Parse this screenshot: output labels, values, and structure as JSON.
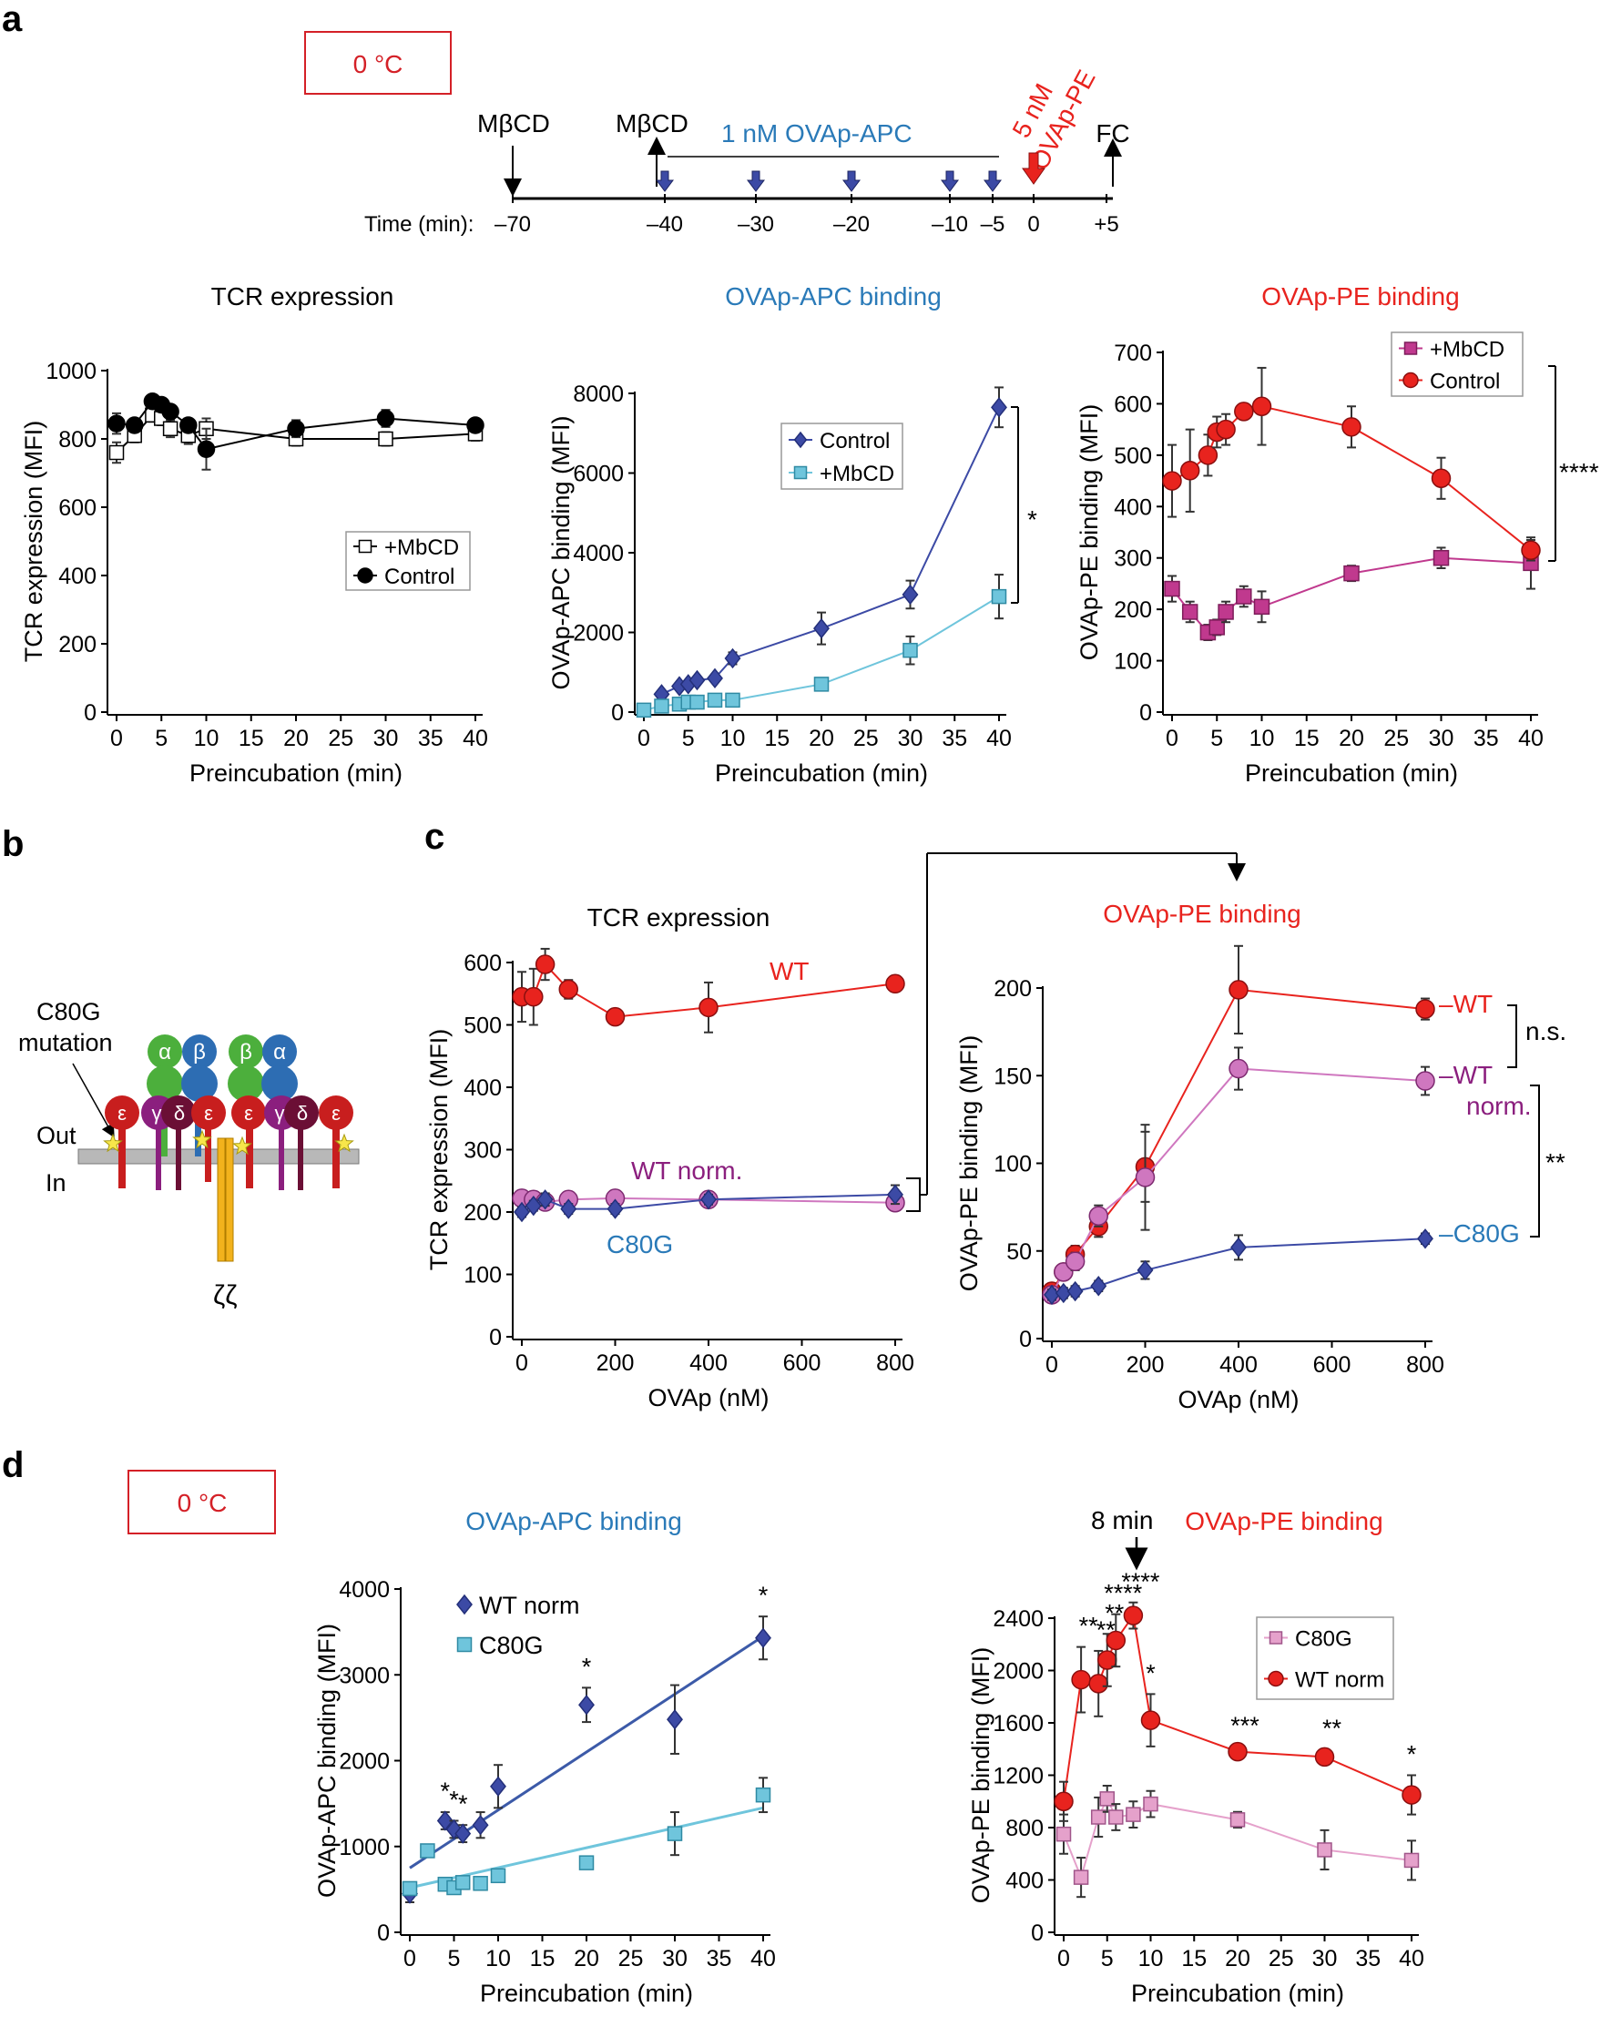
{
  "panels": {
    "a": "a",
    "b": "b",
    "c": "c",
    "d": "d"
  },
  "colors": {
    "red": "#e8231e",
    "redText": "#d42027",
    "blueText": "#2a7ab8",
    "navy": "#3c4aa5",
    "lightblue": "#6fc5dc",
    "magenta": "#c0398e",
    "pink": "#e5a1cb",
    "purple": "#8b1f7e",
    "orchid": "#cf77bf"
  },
  "timeline": {
    "temperature": "0 °C",
    "mbcd1": "MβCD",
    "mbcd2": "MβCD",
    "apc_label": "1 nM OVAp-APC",
    "pe_label_line1": "5 nM",
    "pe_label_line2": "OVAp-PE",
    "fc": "FC",
    "time_label": "Time (min):",
    "ticks": [
      "–70",
      "–40",
      "–30",
      "–20",
      "–10",
      "–5",
      "0",
      "+5"
    ]
  },
  "schematic": {
    "mutation_label_line1": "C80G",
    "mutation_label_line2": "mutation",
    "out_label": "Out",
    "in_label": "In",
    "zeta_label": "ζζ",
    "alpha": "α",
    "beta": "β",
    "epsilon": "ε",
    "gamma": "γ",
    "delta": "δ"
  },
  "annotations": {
    "a_apc_sig": "*",
    "a_pe_sig": "****",
    "c_ns": "n.s.",
    "c_sig": "**",
    "c_wt": "WT",
    "c_wt_norm": "WT norm.",
    "c_c80g": "C80G",
    "c_wt_right": "–WT",
    "c_wt_norm_right_1": "–WT",
    "c_wt_norm_right_2": "norm.",
    "c_c80g_right": "–C80G",
    "d_temperature": "0 °C",
    "d_time_marker": "8 min"
  },
  "chart_data": [
    {
      "id": "a1",
      "type": "line",
      "title": "TCR expression",
      "xlabel": "Preincubation (min)",
      "ylabel": "TCR expression (MFI)",
      "xlim": [
        0,
        40
      ],
      "ylim": [
        0,
        1000
      ],
      "xticks": [
        0,
        5,
        10,
        15,
        20,
        25,
        30,
        35,
        40
      ],
      "yticks": [
        0,
        200,
        400,
        600,
        800,
        1000
      ],
      "legend": [
        "+MbCD",
        "Control"
      ],
      "series": [
        {
          "name": "+MbCD",
          "x": [
            0,
            2,
            4,
            5,
            6,
            8,
            10,
            20,
            30,
            40
          ],
          "values": [
            760,
            810,
            870,
            860,
            830,
            810,
            830,
            800,
            800,
            815
          ],
          "err": [
            30,
            20,
            20,
            20,
            25,
            25,
            30,
            20,
            20,
            20
          ]
        },
        {
          "name": "Control",
          "x": [
            0,
            2,
            4,
            5,
            6,
            8,
            10,
            20,
            30,
            40
          ],
          "values": [
            845,
            840,
            910,
            900,
            880,
            840,
            770,
            830,
            860,
            840
          ],
          "err": [
            30,
            20,
            15,
            15,
            20,
            20,
            60,
            25,
            25,
            20
          ]
        }
      ]
    },
    {
      "id": "a2",
      "type": "line",
      "title": "OVAp-APC binding",
      "xlabel": "Preincubation (min)",
      "ylabel": "OVAp-APC binding (MFI)",
      "xlim": [
        0,
        40
      ],
      "ylim": [
        0,
        8000
      ],
      "xticks": [
        0,
        5,
        10,
        15,
        20,
        25,
        30,
        35,
        40
      ],
      "yticks": [
        0,
        2000,
        4000,
        6000,
        8000
      ],
      "legend": [
        "Control",
        "+MbCD"
      ],
      "series": [
        {
          "name": "Control",
          "x": [
            2,
            4,
            5,
            6,
            8,
            10,
            20,
            30,
            40
          ],
          "values": [
            450,
            650,
            700,
            800,
            850,
            1350,
            2100,
            2950,
            7650
          ],
          "err": [
            80,
            80,
            80,
            80,
            80,
            150,
            400,
            350,
            500
          ]
        },
        {
          "name": "+MbCD",
          "x": [
            0,
            2,
            4,
            5,
            6,
            8,
            10,
            20,
            30,
            40
          ],
          "values": [
            50,
            150,
            200,
            250,
            250,
            300,
            300,
            700,
            1550,
            2900
          ],
          "err": [
            30,
            30,
            30,
            30,
            30,
            40,
            40,
            80,
            350,
            550
          ]
        }
      ]
    },
    {
      "id": "a3",
      "type": "line",
      "title": "OVAp-PE binding",
      "xlabel": "Preincubation (min)",
      "ylabel": "OVAp-PE binding (MFI)",
      "xlim": [
        0,
        40
      ],
      "ylim": [
        0,
        700
      ],
      "xticks": [
        0,
        5,
        10,
        15,
        20,
        25,
        30,
        35,
        40
      ],
      "yticks": [
        0,
        100,
        200,
        300,
        400,
        500,
        600,
        700
      ],
      "legend": [
        "+MbCD",
        "Control"
      ],
      "series": [
        {
          "name": "+MbCD",
          "x": [
            0,
            2,
            4,
            5,
            6,
            8,
            10,
            20,
            30,
            40
          ],
          "values": [
            240,
            195,
            155,
            165,
            195,
            225,
            205,
            270,
            300,
            290
          ],
          "err": [
            25,
            20,
            15,
            15,
            20,
            20,
            30,
            15,
            20,
            50
          ]
        },
        {
          "name": "Control",
          "x": [
            0,
            2,
            4,
            5,
            6,
            8,
            10,
            20,
            30,
            40
          ],
          "values": [
            450,
            470,
            500,
            545,
            550,
            585,
            595,
            555,
            455,
            315
          ],
          "err": [
            70,
            80,
            40,
            30,
            30,
            10,
            75,
            40,
            40,
            20
          ]
        }
      ]
    },
    {
      "id": "c1",
      "type": "line",
      "title": "TCR expression",
      "xlabel": "OVAp (nM)",
      "ylabel": "TCR expression (MFI)",
      "xlim": [
        0,
        800
      ],
      "ylim": [
        0,
        600
      ],
      "xticks": [
        0,
        200,
        400,
        600,
        800
      ],
      "yticks": [
        0,
        100,
        200,
        300,
        400,
        500,
        600
      ],
      "series": [
        {
          "name": "WT",
          "x": [
            0,
            25,
            50,
            100,
            200,
            400,
            800
          ],
          "values": [
            545,
            545,
            597,
            557,
            513,
            528,
            566
          ],
          "err": [
            40,
            45,
            25,
            15,
            8,
            40,
            8
          ]
        },
        {
          "name": "WT norm.",
          "x": [
            0,
            25,
            50,
            100,
            200,
            400,
            800
          ],
          "values": [
            222,
            220,
            216,
            220,
            222,
            220,
            215
          ],
          "err": [
            8,
            8,
            8,
            8,
            8,
            8,
            8
          ]
        },
        {
          "name": "C80G",
          "x": [
            0,
            25,
            50,
            100,
            200,
            400,
            800
          ],
          "values": [
            200,
            210,
            220,
            205,
            205,
            220,
            228
          ],
          "err": [
            8,
            8,
            10,
            8,
            8,
            8,
            15
          ]
        }
      ]
    },
    {
      "id": "c2",
      "type": "line",
      "title": "OVAp-PE binding",
      "xlabel": "OVAp (nM)",
      "ylabel": "OVAp-PE binding (MFI)",
      "xlim": [
        0,
        800
      ],
      "ylim": [
        0,
        200
      ],
      "xticks": [
        0,
        200,
        400,
        600,
        800
      ],
      "yticks": [
        0,
        50,
        100,
        150,
        200
      ],
      "series": [
        {
          "name": "WT",
          "x": [
            0,
            25,
            50,
            100,
            200,
            400,
            800
          ],
          "values": [
            27,
            38,
            48,
            64,
            98,
            199,
            188
          ],
          "err": [
            4,
            4,
            5,
            6,
            20,
            25,
            6
          ]
        },
        {
          "name": "WT norm.",
          "x": [
            0,
            25,
            50,
            100,
            200,
            400,
            800
          ],
          "values": [
            25,
            38,
            44,
            70,
            92,
            154,
            147
          ],
          "err": [
            4,
            4,
            5,
            6,
            30,
            12,
            8
          ]
        },
        {
          "name": "C80G",
          "x": [
            0,
            25,
            50,
            100,
            200,
            400,
            800
          ],
          "values": [
            25,
            26,
            27,
            30,
            39,
            52,
            57
          ],
          "err": [
            3,
            3,
            3,
            3,
            5,
            7,
            3
          ]
        }
      ]
    },
    {
      "id": "d1",
      "type": "scatter",
      "title": "OVAp-APC binding",
      "xlabel": "Preincubation (min)",
      "ylabel": "OVAp-APC binding (MFI)",
      "xlim": [
        0,
        40
      ],
      "ylim": [
        0,
        4000
      ],
      "xticks": [
        0,
        5,
        10,
        15,
        20,
        25,
        30,
        35,
        40
      ],
      "yticks": [
        0,
        1000,
        2000,
        3000,
        4000
      ],
      "legend": [
        "WT norm",
        "C80G"
      ],
      "series": [
        {
          "name": "WT norm",
          "x": [
            0,
            4,
            5,
            6,
            8,
            10,
            20,
            30,
            40
          ],
          "values": [
            450,
            1300,
            1200,
            1150,
            1250,
            1700,
            2650,
            2480,
            3430
          ],
          "err": [
            100,
            100,
            100,
            100,
            150,
            250,
            200,
            400,
            250
          ],
          "fit": [
            750,
            3450
          ]
        },
        {
          "name": "C80G",
          "x": [
            0,
            2,
            4,
            5,
            6,
            8,
            10,
            20,
            30,
            40
          ],
          "values": [
            510,
            950,
            560,
            520,
            580,
            570,
            660,
            810,
            1150,
            1600
          ],
          "err": [
            50,
            50,
            50,
            50,
            50,
            50,
            60,
            60,
            250,
            200
          ],
          "fit": [
            520,
            1450
          ]
        }
      ],
      "significance": [
        {
          "x": 4,
          "label": "*"
        },
        {
          "x": 5,
          "label": "*"
        },
        {
          "x": 6,
          "label": "*"
        },
        {
          "x": 20,
          "label": "*"
        },
        {
          "x": 40,
          "label": "*"
        }
      ]
    },
    {
      "id": "d2",
      "type": "line",
      "title": "OVAp-PE binding",
      "xlabel": "Preincubation (min)",
      "ylabel": "OVAp-PE binding (MFI)",
      "xlim": [
        0,
        40
      ],
      "ylim": [
        0,
        2400
      ],
      "xticks": [
        0,
        5,
        10,
        15,
        20,
        25,
        30,
        35,
        40
      ],
      "yticks": [
        0,
        400,
        800,
        1200,
        1600,
        2000,
        2400
      ],
      "legend": [
        "C80G",
        "WT norm"
      ],
      "series": [
        {
          "name": "C80G",
          "x": [
            0,
            2,
            4,
            5,
            6,
            8,
            10,
            20,
            30,
            40
          ],
          "values": [
            750,
            420,
            880,
            1020,
            880,
            900,
            980,
            860,
            630,
            550
          ],
          "err": [
            150,
            150,
            150,
            100,
            100,
            100,
            100,
            60,
            150,
            150
          ]
        },
        {
          "name": "WT norm",
          "x": [
            0,
            2,
            4,
            5,
            6,
            8,
            10,
            20,
            30,
            40
          ],
          "values": [
            1000,
            1930,
            1900,
            2080,
            2230,
            2420,
            1620,
            1380,
            1340,
            1050
          ],
          "err": [
            150,
            250,
            250,
            200,
            200,
            100,
            200,
            40,
            60,
            150
          ]
        }
      ],
      "significance": [
        {
          "x": 2,
          "label": "**"
        },
        {
          "x": 4,
          "label": "**"
        },
        {
          "x": 5,
          "label": "**"
        },
        {
          "x": 6,
          "label": "****"
        },
        {
          "x": 8,
          "label": "****"
        },
        {
          "x": 10,
          "label": "*"
        },
        {
          "x": 20,
          "label": "***"
        },
        {
          "x": 30,
          "label": "**"
        },
        {
          "x": 40,
          "label": "*"
        }
      ]
    }
  ]
}
